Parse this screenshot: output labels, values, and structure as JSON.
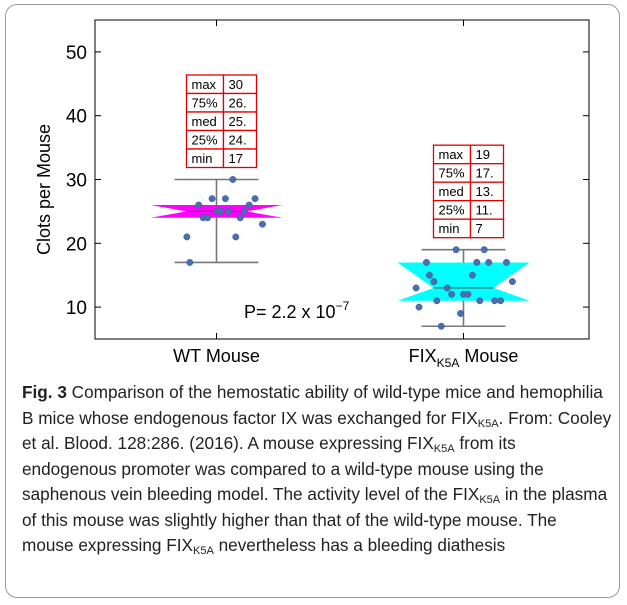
{
  "chart_data": {
    "type": "box-scatter",
    "ylabel": "Clots per Mouse",
    "ylim": [
      5,
      55
    ],
    "yticks": [
      10,
      20,
      30,
      40,
      50
    ],
    "categories": [
      {
        "base": "WT Mouse",
        "sub": "",
        "suffix": ""
      },
      {
        "base": "FIX",
        "sub": "K5A",
        "suffix": " Mouse"
      }
    ],
    "series": [
      {
        "category": "WT Mouse",
        "color": "#ff00ff",
        "whisker_low": 17,
        "whisker_high": 30,
        "q1": 24,
        "median": 25,
        "q3": 26,
        "stats": [
          {
            "label": "max",
            "value": "30"
          },
          {
            "label": "75%",
            "value": "26."
          },
          {
            "label": "med",
            "value": "25."
          },
          {
            "label": "25%",
            "value": "24."
          },
          {
            "label": "min",
            "value": "17"
          }
        ],
        "points": [
          {
            "dx": -0.2,
            "y": 21
          },
          {
            "dx": -0.18,
            "y": 17
          },
          {
            "dx": -0.12,
            "y": 26
          },
          {
            "dx": -0.09,
            "y": 24
          },
          {
            "dx": -0.06,
            "y": 24
          },
          {
            "dx": -0.03,
            "y": 27
          },
          {
            "dx": 0.0,
            "y": 25
          },
          {
            "dx": 0.03,
            "y": 25
          },
          {
            "dx": 0.06,
            "y": 27
          },
          {
            "dx": 0.08,
            "y": 25
          },
          {
            "dx": 0.11,
            "y": 30
          },
          {
            "dx": 0.13,
            "y": 21
          },
          {
            "dx": 0.16,
            "y": 24
          },
          {
            "dx": 0.19,
            "y": 25
          },
          {
            "dx": 0.22,
            "y": 26
          },
          {
            "dx": 0.26,
            "y": 27
          },
          {
            "dx": 0.31,
            "y": 23
          }
        ]
      },
      {
        "category": "FIXK5A Mouse",
        "color": "#00ffff",
        "whisker_low": 7,
        "whisker_high": 19,
        "q1": 11,
        "median": 13,
        "q3": 17,
        "stats": [
          {
            "label": "max",
            "value": "19"
          },
          {
            "label": "75%",
            "value": "17."
          },
          {
            "label": "med",
            "value": "13."
          },
          {
            "label": "25%",
            "value": "11."
          },
          {
            "label": "min",
            "value": "7"
          }
        ],
        "points": [
          {
            "dx": -0.32,
            "y": 13
          },
          {
            "dx": -0.3,
            "y": 10
          },
          {
            "dx": -0.25,
            "y": 17
          },
          {
            "dx": -0.23,
            "y": 15
          },
          {
            "dx": -0.2,
            "y": 14
          },
          {
            "dx": -0.18,
            "y": 11
          },
          {
            "dx": -0.15,
            "y": 7
          },
          {
            "dx": -0.11,
            "y": 13
          },
          {
            "dx": -0.08,
            "y": 12
          },
          {
            "dx": -0.05,
            "y": 19
          },
          {
            "dx": -0.02,
            "y": 9
          },
          {
            "dx": 0.0,
            "y": 12
          },
          {
            "dx": 0.03,
            "y": 12
          },
          {
            "dx": 0.06,
            "y": 15
          },
          {
            "dx": 0.09,
            "y": 17
          },
          {
            "dx": 0.11,
            "y": 11
          },
          {
            "dx": 0.14,
            "y": 19
          },
          {
            "dx": 0.17,
            "y": 17
          },
          {
            "dx": 0.21,
            "y": 11
          },
          {
            "dx": 0.25,
            "y": 11
          },
          {
            "dx": 0.29,
            "y": 17
          },
          {
            "dx": 0.33,
            "y": 14
          }
        ]
      }
    ],
    "annotation": {
      "text": "P= 2.2 x 10",
      "exponent": "−7"
    }
  },
  "caption": {
    "fig_label": "Fig. 3",
    "segments": [
      {
        "t": " Comparison of the hemostatic ability of wild-type mice and hemophilia B mice whose endogenous factor IX was exchanged for FIX"
      },
      {
        "sub": "K5A"
      },
      {
        "t": ". From: Cooley et al. Blood. 128:286. (2016). A mouse expressing FIX"
      },
      {
        "sub": "K5A"
      },
      {
        "t": " from its endogenous promoter was compared to a wild-type mouse using the saphenous vein bleeding model. The activity level of the FIX"
      },
      {
        "sub": "K5A"
      },
      {
        "t": " in the plasma of this mouse was slightly higher than that of the wild-type mouse. The mouse expressing FIX"
      },
      {
        "sub": "K5A"
      },
      {
        "t": " nevertheless has a bleeding diathesis"
      }
    ]
  }
}
